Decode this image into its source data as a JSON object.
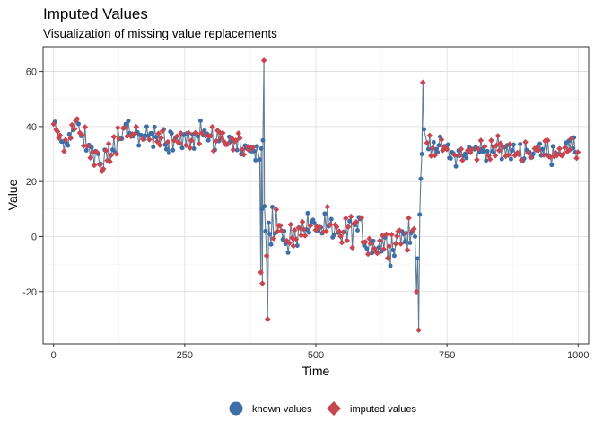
{
  "chart_data": {
    "type": "scatter",
    "title": "Imputed Values",
    "subtitle": "Visualization of missing value replacements",
    "xlabel": "Time",
    "ylabel": "Value",
    "xlim": [
      -20,
      1020
    ],
    "ylim": [
      -39,
      69
    ],
    "x_ticks": [
      0,
      250,
      500,
      750,
      1000
    ],
    "y_ticks": [
      -20,
      0,
      20,
      40,
      60
    ],
    "grid": true,
    "legend_position": "bottom",
    "line_color": "#5f7c96",
    "series": [
      {
        "name": "known values",
        "marker": "circle",
        "color": "#3d6ea8"
      },
      {
        "name": "imputed values",
        "marker": "diamond",
        "color": "#c8464f"
      }
    ],
    "segments": [
      {
        "x_range": [
          0,
          400
        ],
        "level_points": [
          [
            0,
            40
          ],
          [
            20,
            34
          ],
          [
            40,
            40
          ],
          [
            60,
            36
          ],
          [
            75,
            30
          ],
          [
            90,
            26
          ],
          [
            110,
            31
          ],
          [
            130,
            38
          ],
          [
            160,
            37
          ],
          [
            190,
            37
          ],
          [
            220,
            33
          ],
          [
            250,
            37
          ],
          [
            280,
            37
          ],
          [
            310,
            36
          ],
          [
            340,
            36
          ],
          [
            370,
            31
          ],
          [
            398,
            31
          ]
        ],
        "noise": 3.2
      },
      {
        "x_range": [
          400,
          700
        ],
        "level_points": [
          [
            402,
            4
          ],
          [
            430,
            2
          ],
          [
            460,
            -2
          ],
          [
            480,
            4
          ],
          [
            500,
            4
          ],
          [
            520,
            3
          ],
          [
            540,
            0
          ],
          [
            560,
            1
          ],
          [
            580,
            4
          ],
          [
            600,
            -2
          ],
          [
            620,
            -3
          ],
          [
            640,
            -3
          ],
          [
            660,
            0
          ],
          [
            680,
            0
          ],
          [
            698,
            0
          ]
        ],
        "noise": 4.2
      },
      {
        "x_range": [
          700,
          1000
        ],
        "level_points": [
          [
            702,
            34
          ],
          [
            720,
            34
          ],
          [
            740,
            32
          ],
          [
            760,
            30
          ],
          [
            780,
            30
          ],
          [
            800,
            31
          ],
          [
            830,
            32
          ],
          [
            860,
            31
          ],
          [
            890,
            31
          ],
          [
            920,
            31
          ],
          [
            950,
            31
          ],
          [
            980,
            32
          ],
          [
            1000,
            31
          ]
        ],
        "noise": 2.8
      }
    ],
    "spikes": [
      {
        "x": 393,
        "y": 28,
        "kind": "known"
      },
      {
        "x": 395,
        "y": -13,
        "kind": "imputed"
      },
      {
        "x": 396,
        "y": 32,
        "kind": "known"
      },
      {
        "x": 397,
        "y": 10,
        "kind": "known"
      },
      {
        "x": 398,
        "y": -17,
        "kind": "imputed"
      },
      {
        "x": 399,
        "y": 35,
        "kind": "known"
      },
      {
        "x": 401,
        "y": 64,
        "kind": "imputed"
      },
      {
        "x": 402,
        "y": 11,
        "kind": "known"
      },
      {
        "x": 404,
        "y": 2,
        "kind": "known"
      },
      {
        "x": 406,
        "y": -7,
        "kind": "imputed"
      },
      {
        "x": 408,
        "y": -30,
        "kind": "imputed"
      },
      {
        "x": 410,
        "y": 5,
        "kind": "known"
      },
      {
        "x": 689,
        "y": 0,
        "kind": "known"
      },
      {
        "x": 692,
        "y": -20,
        "kind": "imputed"
      },
      {
        "x": 694,
        "y": -8,
        "kind": "known"
      },
      {
        "x": 696,
        "y": -34,
        "kind": "imputed"
      },
      {
        "x": 698,
        "y": 8,
        "kind": "known"
      },
      {
        "x": 700,
        "y": 21,
        "kind": "known"
      },
      {
        "x": 702,
        "y": 30,
        "kind": "known"
      },
      {
        "x": 704,
        "y": 56,
        "kind": "imputed"
      },
      {
        "x": 706,
        "y": 39,
        "kind": "known"
      }
    ]
  }
}
